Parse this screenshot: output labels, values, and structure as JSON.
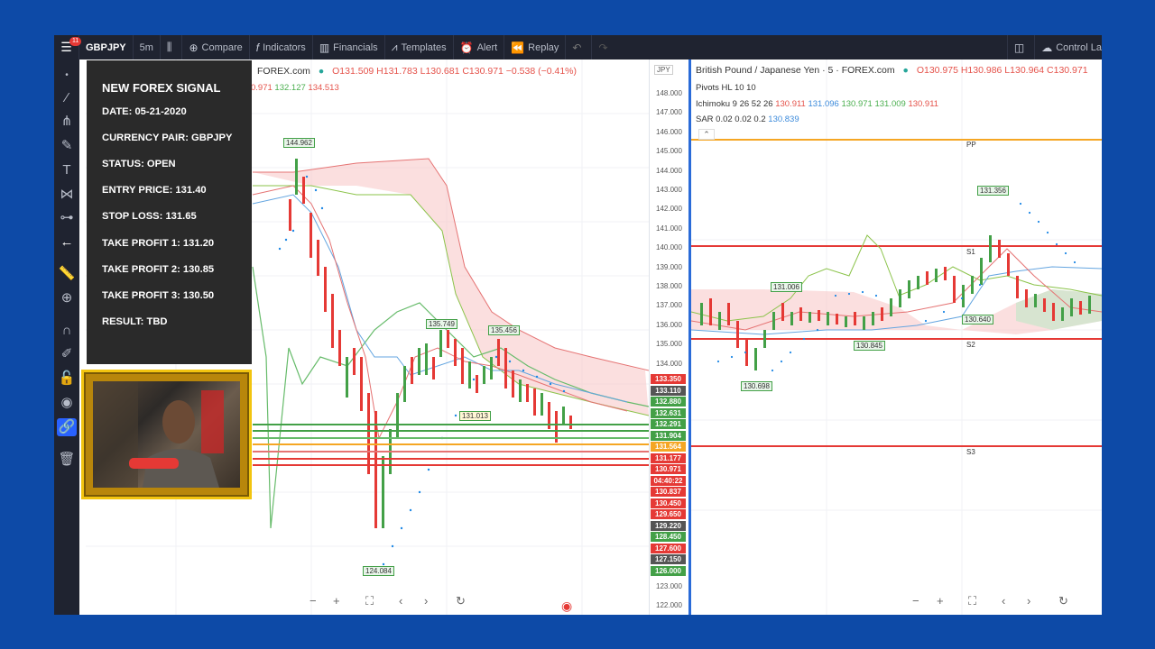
{
  "toolbar": {
    "menu_badge": "11",
    "symbol": "GBPJPY",
    "interval": "5m",
    "compare": "Compare",
    "indicators": "Indicators",
    "financials": "Financials",
    "templates": "Templates",
    "alert": "Alert",
    "replay": "Replay",
    "control": "Control La"
  },
  "left_chart": {
    "legend_source": "FOREX.com",
    "ohlc": "O131.509 H131.783 L130.681 C130.971 −0.538 (−0.41%)",
    "ind_a": "0.971",
    "ind_b": "132.127",
    "ind_c": "134.513",
    "currency": "JPY",
    "price_ticks": [
      "148.000",
      "147.000",
      "146.000",
      "145.000",
      "144.000",
      "143.000",
      "142.000",
      "141.000",
      "140.000",
      "139.000",
      "138.000",
      "137.000",
      "136.000",
      "135.000",
      "134.000",
      "123.000",
      "122.000"
    ],
    "price_tags": [
      {
        "v": "133.350",
        "c": "#e53935"
      },
      {
        "v": "133.110",
        "c": "#555555"
      },
      {
        "v": "132.880",
        "c": "#43a047"
      },
      {
        "v": "132.631",
        "c": "#43a047"
      },
      {
        "v": "132.291",
        "c": "#43a047"
      },
      {
        "v": "131.904",
        "c": "#43a047"
      },
      {
        "v": "131.564",
        "c": "#f5a623"
      },
      {
        "v": "131.177",
        "c": "#e53935"
      },
      {
        "v": "130.971",
        "c": "#e53935"
      },
      {
        "v": "04:40:22",
        "c": "#e53935"
      },
      {
        "v": "130.837",
        "c": "#e53935"
      },
      {
        "v": "130.450",
        "c": "#e53935"
      },
      {
        "v": "129.650",
        "c": "#e53935"
      },
      {
        "v": "129.220",
        "c": "#555555"
      },
      {
        "v": "128.450",
        "c": "#43a047"
      },
      {
        "v": "127.600",
        "c": "#e53935"
      },
      {
        "v": "127.150",
        "c": "#555555"
      },
      {
        "v": "126.000",
        "c": "#43a047"
      }
    ],
    "annotations": [
      "144.962",
      "135.749",
      "135.456",
      "124.084",
      "131.013"
    ]
  },
  "right_chart": {
    "title": "British Pound / Japanese Yen · 5 · FOREX.com",
    "ohlc": "O130.975 H130.986 L130.964 C130.971",
    "pivots": "Pivots HL 10 10",
    "ichimoku_label": "Ichimoku 9 26 52 26",
    "ichimoku_vals": [
      "130.911",
      "131.096",
      "130.971",
      "131.009",
      "130.911"
    ],
    "sar_label": "SAR 0.02 0.02 0.2",
    "sar_val": "130.839",
    "levels": [
      "PP",
      "S1",
      "S2",
      "S3"
    ],
    "annotations": [
      "131.356",
      "131.006",
      "130.640",
      "130.845",
      "130.698"
    ]
  },
  "signal": {
    "heading": "NEW FOREX SIGNAL",
    "date": "DATE: 05-21-2020",
    "pair": "CURRENCY PAIR: GBPJPY",
    "status": "STATUS: OPEN",
    "entry": "ENTRY PRICE: 131.40",
    "stop": "STOP LOSS: 131.65",
    "tp1": "TAKE PROFIT 1: 131.20",
    "tp2": "TAKE PROFIT 2: 130.85",
    "tp3": "TAKE PROFIT 3: 130.50",
    "result": "RESULT: TBD"
  }
}
